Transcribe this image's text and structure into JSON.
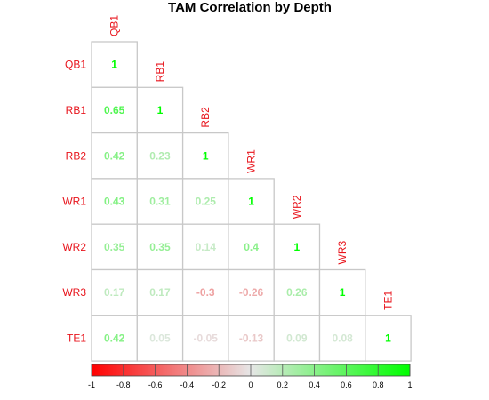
{
  "chart_data": {
    "type": "heatmap",
    "title": "TAM Correlation by Depth",
    "variables": [
      "QB1",
      "RB1",
      "RB2",
      "WR1",
      "WR2",
      "WR3",
      "TE1"
    ],
    "matrix_lower": [
      [
        1
      ],
      [
        0.65,
        1
      ],
      [
        0.42,
        0.23,
        1
      ],
      [
        0.43,
        0.31,
        0.25,
        1
      ],
      [
        0.35,
        0.35,
        0.14,
        0.4,
        1
      ],
      [
        0.17,
        0.17,
        -0.3,
        -0.26,
        0.26,
        1
      ],
      [
        0.42,
        0.05,
        -0.05,
        -0.13,
        0.09,
        0.08,
        1
      ]
    ],
    "value_labels": [
      [
        "1"
      ],
      [
        "0.65",
        "1"
      ],
      [
        "0.42",
        "0.23",
        "1"
      ],
      [
        "0.43",
        "0.31",
        "0.25",
        "1"
      ],
      [
        "0.35",
        "0.35",
        "0.14",
        "0.4",
        "1"
      ],
      [
        "0.17",
        "0.17",
        "-0.3",
        "-0.26",
        "0.26",
        "1"
      ],
      [
        "0.42",
        "0.05",
        "-0.05",
        "-0.13",
        "0.09",
        "0.08",
        "1"
      ]
    ],
    "triangle": "lower",
    "color_scale": {
      "range": [
        -1,
        1
      ],
      "low_color": "#ff0000",
      "mid_color": "#e6e6e6",
      "high_color": "#00ff00",
      "ticks": [
        "-1",
        "-0.8",
        "-0.6",
        "-0.4",
        "-0.2",
        "0",
        "0.2",
        "0.4",
        "0.6",
        "0.8",
        "1"
      ]
    },
    "label_color": "#e8141c",
    "colorbar_position": "bottom",
    "grid": true
  }
}
